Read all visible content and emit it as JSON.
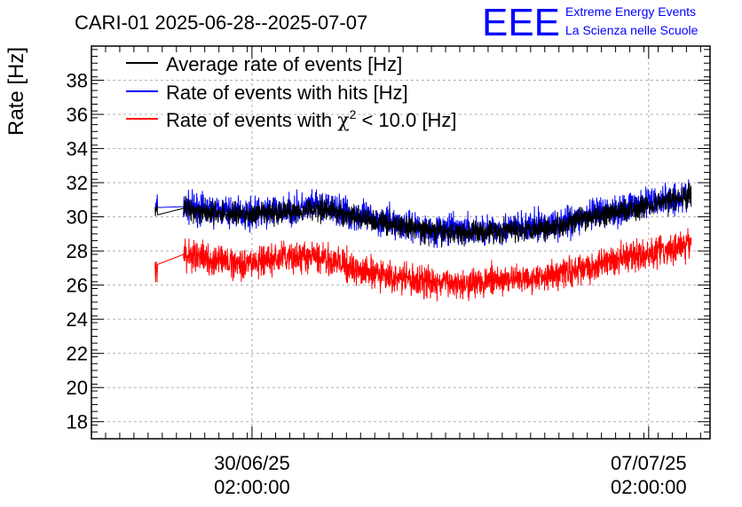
{
  "header": {
    "title": "CARI-01 2025-06-28--2025-07-07",
    "logo_text": "EEE",
    "logo_line1": "Extreme Energy Events",
    "logo_line2": "La Scienza nelle Scuole"
  },
  "chart_data": {
    "type": "line",
    "title": "CARI-01 2025-06-28--2025-07-07",
    "xlabel": "",
    "ylabel": "Rate [Hz]",
    "ylim": [
      17,
      40
    ],
    "xlim": [
      "2025-06-27 06:00",
      "2025-07-08 04:00"
    ],
    "y_ticks": [
      "18",
      "20",
      "22",
      "24",
      "26",
      "28",
      "30",
      "32",
      "34",
      "36",
      "38"
    ],
    "x_ticks": [
      {
        "date": "30/06/25",
        "time": "02:00:00",
        "x": "2025-06-30 02:00"
      },
      {
        "date": "07/07/25",
        "time": "02:00:00",
        "x": "2025-07-07 02:00"
      }
    ],
    "grid": true,
    "legend_position": "top-left",
    "legend": [
      {
        "label": "Average rate of events [Hz]",
        "color": "#000000"
      },
      {
        "label": "Rate of events with hits [Hz]",
        "color": "#0000ff"
      },
      {
        "label_prefix": "Rate of events with ",
        "label_symbol": "χ",
        "label_sup": "2",
        "label_suffix": " < 10.0 [Hz]",
        "color": "#ff0000"
      }
    ],
    "segments": [
      {
        "x_start": "2025-06-28 09:00",
        "x_end": "2025-06-28 10:00"
      },
      {
        "x_start": "2025-06-28 21:00",
        "x_end": "2025-07-07 20:00"
      }
    ],
    "series": [
      {
        "name": "Rate of events with hits [Hz]",
        "color": "#0000ff",
        "x": [
          "2025-06-28 09:00",
          "2025-06-28 21:00",
          "2025-06-29 12:00",
          "2025-06-30 02:00",
          "2025-06-30 16:00",
          "2025-07-01 08:00",
          "2025-07-02 00:00",
          "2025-07-02 16:00",
          "2025-07-03 08:00",
          "2025-07-04 00:00",
          "2025-07-04 16:00",
          "2025-07-05 08:00",
          "2025-07-06 00:00",
          "2025-07-06 16:00",
          "2025-07-07 08:00",
          "2025-07-07 20:00"
        ],
        "values": [
          30.5,
          30.6,
          30.3,
          30.2,
          30.4,
          30.6,
          30.0,
          29.6,
          29.2,
          29.2,
          29.3,
          29.5,
          30.0,
          30.5,
          31.0,
          31.3
        ],
        "spread": 1.3
      },
      {
        "name": "Average rate of events [Hz]",
        "color": "#000000",
        "x": [
          "2025-06-28 09:00",
          "2025-06-28 21:00",
          "2025-06-29 12:00",
          "2025-06-30 02:00",
          "2025-06-30 16:00",
          "2025-07-01 08:00",
          "2025-07-02 00:00",
          "2025-07-02 16:00",
          "2025-07-03 08:00",
          "2025-07-04 00:00",
          "2025-07-04 16:00",
          "2025-07-05 08:00",
          "2025-07-06 00:00",
          "2025-07-06 16:00",
          "2025-07-07 08:00",
          "2025-07-07 20:00"
        ],
        "values": [
          30.3,
          30.5,
          30.2,
          30.1,
          30.3,
          30.5,
          29.9,
          29.5,
          29.1,
          29.1,
          29.2,
          29.4,
          29.9,
          30.4,
          30.9,
          31.2
        ],
        "spread": 1.0
      },
      {
        "name": "Rate of events with chi2 < 10.0 [Hz]",
        "color": "#ff0000",
        "x": [
          "2025-06-28 09:00",
          "2025-06-28 21:00",
          "2025-06-29 12:00",
          "2025-06-30 02:00",
          "2025-06-30 16:00",
          "2025-07-01 08:00",
          "2025-07-02 00:00",
          "2025-07-02 16:00",
          "2025-07-03 08:00",
          "2025-07-04 00:00",
          "2025-07-04 16:00",
          "2025-07-05 08:00",
          "2025-07-06 00:00",
          "2025-07-06 16:00",
          "2025-07-07 08:00",
          "2025-07-07 20:00"
        ],
        "values": [
          26.8,
          27.8,
          27.4,
          27.3,
          27.6,
          27.6,
          26.8,
          26.4,
          26.1,
          26.2,
          26.3,
          26.6,
          27.0,
          27.6,
          28.0,
          28.5
        ],
        "spread": 1.3
      }
    ]
  }
}
